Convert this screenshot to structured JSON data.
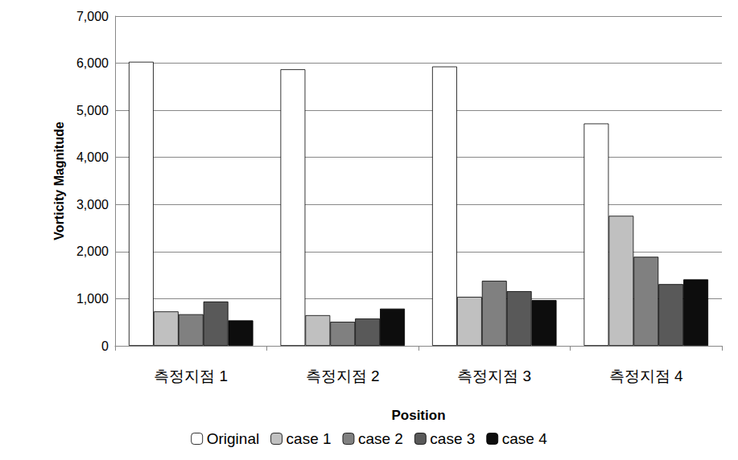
{
  "chart_data": {
    "type": "bar",
    "categories": [
      "측정지점 1",
      "측정지점 2",
      "측정지점 3",
      "측정지점 4"
    ],
    "series": [
      {
        "name": "Original",
        "color": "#ffffff",
        "values": [
          6030,
          5870,
          5930,
          4720
        ]
      },
      {
        "name": "case 1",
        "color": "#c0c0c0",
        "values": [
          730,
          650,
          1040,
          2760
        ]
      },
      {
        "name": "case 2",
        "color": "#808080",
        "values": [
          670,
          510,
          1380,
          1890
        ]
      },
      {
        "name": "case 3",
        "color": "#595959",
        "values": [
          940,
          580,
          1160,
          1310
        ]
      },
      {
        "name": "case 4",
        "color": "#0d0d0d",
        "values": [
          540,
          790,
          970,
          1410
        ]
      }
    ],
    "xlabel": "Position",
    "ylabel": "Vorticity Magnitude",
    "ylim": [
      0,
      7000
    ],
    "yticks": [
      0,
      1000,
      2000,
      3000,
      4000,
      5000,
      6000,
      7000
    ],
    "grid": true,
    "legend": "bottom"
  }
}
